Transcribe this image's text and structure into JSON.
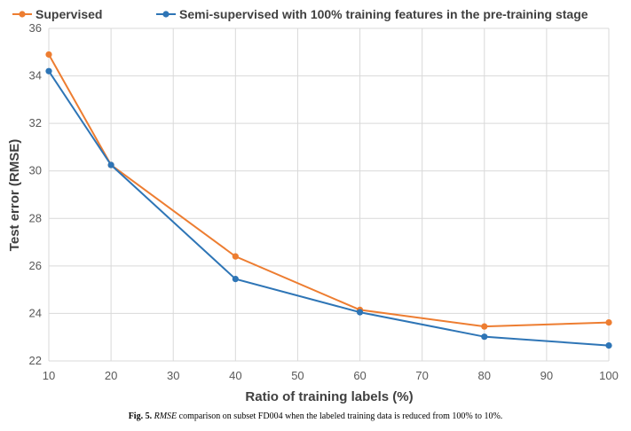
{
  "chart_data": {
    "type": "line",
    "xlabel": "Ratio of training labels (%)",
    "ylabel": "Test error (RMSE)",
    "xlim": [
      10,
      100
    ],
    "ylim": [
      22,
      36
    ],
    "xticks": [
      10,
      20,
      30,
      40,
      50,
      60,
      70,
      80,
      90,
      100
    ],
    "yticks": [
      22,
      24,
      26,
      28,
      30,
      32,
      34,
      36
    ],
    "grid": true,
    "legend_position": "top",
    "x": [
      10,
      20,
      40,
      60,
      80,
      100
    ],
    "series": [
      {
        "name": "Supervised",
        "color": "#ED7D31",
        "values": [
          34.9,
          30.25,
          26.4,
          24.15,
          23.45,
          23.62
        ]
      },
      {
        "name": "Semi-supervised with 100% training features in the pre-training stage",
        "color": "#2E75B6",
        "values": [
          34.2,
          30.25,
          25.45,
          24.05,
          23.02,
          22.65
        ]
      }
    ]
  },
  "caption": {
    "label": "Fig. 5.",
    "rmse": "RMSE",
    "text": "comparison on subset FD004 when the labeled training data is reduced from 100% to 10%."
  }
}
